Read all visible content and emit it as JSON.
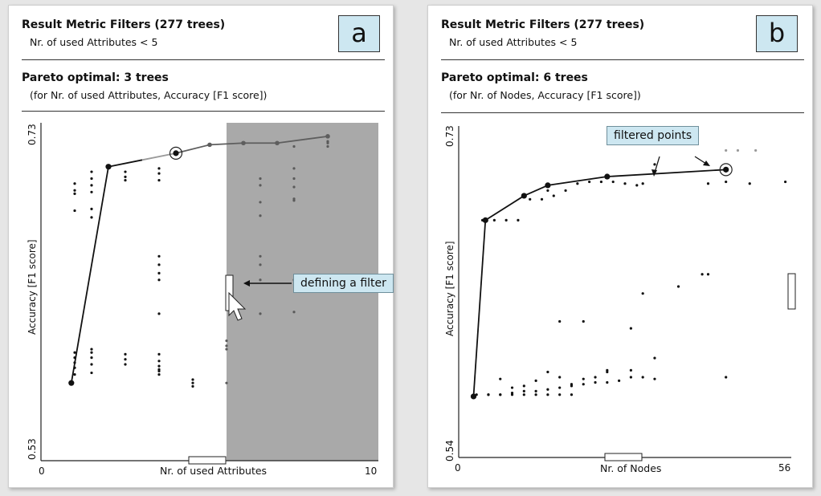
{
  "panels": [
    {
      "header": "Result Metric Filters (277 trees)",
      "filter_text": "Nr. of used Attributes < 5",
      "pareto_title": "Pareto optimal: 3 trees",
      "pareto_sub": "(for Nr. of used Attributes, Accuracy [F1 score])",
      "letter": "a",
      "callout": "defining a filter"
    },
    {
      "header": "Result Metric Filters (277 trees)",
      "filter_text": "Nr. of used Attributes < 5",
      "pareto_title": "Pareto optimal: 6 trees",
      "pareto_sub": "(for Nr. of Nodes, Accuracy [F1 score])",
      "letter": "b",
      "callout": "filtered points"
    }
  ],
  "chart_data": [
    {
      "type": "scatter",
      "xlabel": "Nr. of used Attributes",
      "ylabel": "Accuracy [F1 score]",
      "xlim": [
        0,
        10
      ],
      "ylim": [
        0.53,
        0.73
      ],
      "x_ticks": [
        "0",
        "10"
      ],
      "y_ticks": [
        "0.53",
        "0.73"
      ],
      "filter_region_x": [
        5.5,
        10
      ],
      "points": [
        [
          4.5,
          0.576
        ],
        [
          4.5,
          0.578
        ],
        [
          4.5,
          0.574
        ],
        [
          5.5,
          0.596
        ],
        [
          5.5,
          0.576
        ],
        [
          5.5,
          0.598
        ],
        [
          5.5,
          0.601
        ],
        [
          6.5,
          0.617
        ],
        [
          6.5,
          0.637
        ],
        [
          6.5,
          0.646
        ],
        [
          6.5,
          0.651
        ],
        [
          6.5,
          0.675
        ],
        [
          6.5,
          0.683
        ],
        [
          6.5,
          0.693
        ],
        [
          6.5,
          0.697
        ],
        [
          7.5,
          0.618
        ],
        [
          7.5,
          0.637
        ],
        [
          7.5,
          0.684
        ],
        [
          7.5,
          0.685
        ],
        [
          7.5,
          0.692
        ],
        [
          7.5,
          0.697
        ],
        [
          7.5,
          0.703
        ],
        [
          7.5,
          0.716
        ],
        [
          8.5,
          0.718
        ],
        [
          8.5,
          0.719
        ],
        [
          8.5,
          0.716
        ],
        [
          3.5,
          0.617
        ],
        [
          3.5,
          0.651
        ],
        [
          3.5,
          0.646
        ],
        [
          3.5,
          0.641
        ],
        [
          3.5,
          0.637
        ],
        [
          3.5,
          0.584
        ],
        [
          3.5,
          0.581
        ],
        [
          3.5,
          0.583
        ],
        [
          3.5,
          0.586
        ],
        [
          3.5,
          0.589
        ],
        [
          3.5,
          0.593
        ],
        [
          3.5,
          0.7
        ],
        [
          3.5,
          0.703
        ],
        [
          3.5,
          0.696
        ],
        [
          2.5,
          0.587
        ],
        [
          2.5,
          0.59
        ],
        [
          2.5,
          0.593
        ],
        [
          2.5,
          0.696
        ],
        [
          2.5,
          0.698
        ],
        [
          2.5,
          0.701
        ],
        [
          1.5,
          0.582
        ],
        [
          1.5,
          0.587
        ],
        [
          1.5,
          0.591
        ],
        [
          1.5,
          0.594
        ],
        [
          1.5,
          0.596
        ],
        [
          1.5,
          0.674
        ],
        [
          1.5,
          0.679
        ],
        [
          1.5,
          0.689
        ],
        [
          1.5,
          0.693
        ],
        [
          1.5,
          0.697
        ],
        [
          1.5,
          0.701
        ],
        [
          1.0,
          0.581
        ],
        [
          1.0,
          0.585
        ],
        [
          1.0,
          0.588
        ],
        [
          1.0,
          0.591
        ],
        [
          1.0,
          0.594
        ],
        [
          1.0,
          0.694
        ],
        [
          1.0,
          0.69
        ],
        [
          1.0,
          0.688
        ],
        [
          1.0,
          0.678
        ]
      ],
      "pareto_line": [
        [
          0.9,
          0.576
        ],
        [
          2.0,
          0.704
        ],
        [
          3.0,
          0.708
        ],
        [
          4.0,
          0.712
        ],
        [
          5.0,
          0.717
        ],
        [
          6.0,
          0.718
        ],
        [
          7.0,
          0.718
        ],
        [
          8.5,
          0.722
        ]
      ],
      "pareto_points": [
        [
          0.9,
          0.576
        ],
        [
          2.0,
          0.704
        ],
        [
          4.0,
          0.712
        ]
      ]
    },
    {
      "type": "scatter",
      "xlabel": "Nr. of Nodes",
      "ylabel": "Accuracy [F1 score]",
      "xlim": [
        0,
        56
      ],
      "ylim": [
        0.54,
        0.73
      ],
      "x_ticks": [
        "0",
        "56"
      ],
      "y_ticks": [
        "0.54",
        "0.73"
      ],
      "points": [
        [
          3,
          0.576
        ],
        [
          5,
          0.576
        ],
        [
          7,
          0.576
        ],
        [
          9,
          0.577
        ],
        [
          11,
          0.578
        ],
        [
          13,
          0.578
        ],
        [
          15,
          0.579
        ],
        [
          17,
          0.58
        ],
        [
          19,
          0.581
        ],
        [
          21,
          0.582
        ],
        [
          23,
          0.583
        ],
        [
          25,
          0.583
        ],
        [
          27,
          0.584
        ],
        [
          29,
          0.586
        ],
        [
          31,
          0.586
        ],
        [
          33,
          0.585
        ],
        [
          7,
          0.585
        ],
        [
          9,
          0.58
        ],
        [
          11,
          0.581
        ],
        [
          13,
          0.584
        ],
        [
          15,
          0.589
        ],
        [
          17,
          0.586
        ],
        [
          19,
          0.582
        ],
        [
          21,
          0.585
        ],
        [
          23,
          0.586
        ],
        [
          25,
          0.589
        ],
        [
          5,
          0.576
        ],
        [
          7,
          0.576
        ],
        [
          9,
          0.576
        ],
        [
          11,
          0.576
        ],
        [
          13,
          0.576
        ],
        [
          15,
          0.576
        ],
        [
          17,
          0.576
        ],
        [
          19,
          0.576
        ],
        [
          4,
          0.676
        ],
        [
          6,
          0.676
        ],
        [
          8,
          0.676
        ],
        [
          10,
          0.676
        ],
        [
          12,
          0.688
        ],
        [
          14,
          0.688
        ],
        [
          15,
          0.693
        ],
        [
          16,
          0.69
        ],
        [
          18,
          0.693
        ],
        [
          20,
          0.697
        ],
        [
          22,
          0.698
        ],
        [
          24,
          0.698
        ],
        [
          26,
          0.698
        ],
        [
          28,
          0.697
        ],
        [
          30,
          0.696
        ],
        [
          31,
          0.697
        ],
        [
          42,
          0.697
        ],
        [
          49,
          0.697
        ],
        [
          55,
          0.698
        ],
        [
          45,
          0.698
        ],
        [
          17,
          0.618
        ],
        [
          21,
          0.618
        ],
        [
          29,
          0.614
        ],
        [
          31,
          0.634
        ],
        [
          37,
          0.638
        ],
        [
          41,
          0.645
        ],
        [
          42,
          0.645
        ],
        [
          25,
          0.59
        ],
        [
          29,
          0.59
        ],
        [
          33,
          0.597
        ],
        [
          45,
          0.586
        ],
        [
          33,
          0.708
        ],
        [
          45,
          0.716
        ],
        [
          47,
          0.716
        ],
        [
          50,
          0.716
        ]
      ],
      "pareto_line": [
        [
          2.5,
          0.575
        ],
        [
          4.5,
          0.676
        ],
        [
          11,
          0.69
        ],
        [
          15,
          0.696
        ],
        [
          25,
          0.701
        ],
        [
          45,
          0.705
        ]
      ],
      "pareto_points": [
        [
          2.5,
          0.575
        ],
        [
          4.5,
          0.676
        ],
        [
          11,
          0.69
        ],
        [
          15,
          0.696
        ],
        [
          25,
          0.701
        ],
        [
          45,
          0.705
        ]
      ]
    }
  ]
}
